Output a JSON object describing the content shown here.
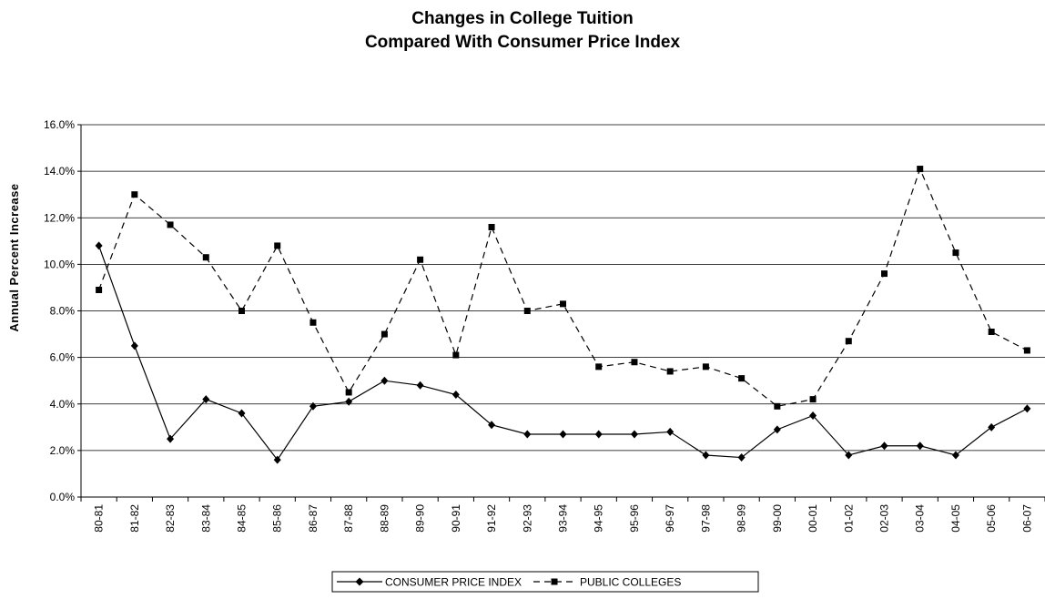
{
  "chart_data": {
    "type": "line",
    "title": [
      "Changes in College Tuition",
      "Compared With Consumer Price Index"
    ],
    "ylabel": "Annual Percent Increase",
    "xlabel": "",
    "ylim": [
      0,
      16
    ],
    "yticks": [
      "0.0%",
      "2.0%",
      "4.0%",
      "6.0%",
      "8.0%",
      "10.0%",
      "12.0%",
      "14.0%",
      "16.0%"
    ],
    "grid": "horizontal",
    "legend_position": "bottom",
    "categories": [
      "80-81",
      "81-82",
      "82-83",
      "83-84",
      "84-85",
      "85-86",
      "86-87",
      "87-88",
      "88-89",
      "89-90",
      "90-91",
      "91-92",
      "92-93",
      "93-94",
      "94-95",
      "95-96",
      "96-97",
      "97-98",
      "98-99",
      "99-00",
      "00-01",
      "01-02",
      "02-03",
      "03-04",
      "04-05",
      "05-06",
      "06-07"
    ],
    "series": [
      {
        "name": "CONSUMER PRICE INDEX",
        "style": "solid",
        "marker": "diamond",
        "color": "#000000",
        "values": [
          10.8,
          6.5,
          2.5,
          4.2,
          3.6,
          1.6,
          3.9,
          4.1,
          5.0,
          4.8,
          4.4,
          3.1,
          2.7,
          2.7,
          2.7,
          2.7,
          2.8,
          1.8,
          1.7,
          2.9,
          3.5,
          1.8,
          2.2,
          2.2,
          1.8,
          3.0,
          3.8
        ]
      },
      {
        "name": "PUBLIC COLLEGES",
        "style": "dashed",
        "marker": "square",
        "color": "#000000",
        "values": [
          8.9,
          13.0,
          11.7,
          10.3,
          8.0,
          10.8,
          7.5,
          4.5,
          7.0,
          10.2,
          6.1,
          11.6,
          8.0,
          8.3,
          5.6,
          5.8,
          5.4,
          5.6,
          5.1,
          3.9,
          4.2,
          6.7,
          9.6,
          14.1,
          10.5,
          7.1,
          6.3
        ]
      }
    ]
  }
}
